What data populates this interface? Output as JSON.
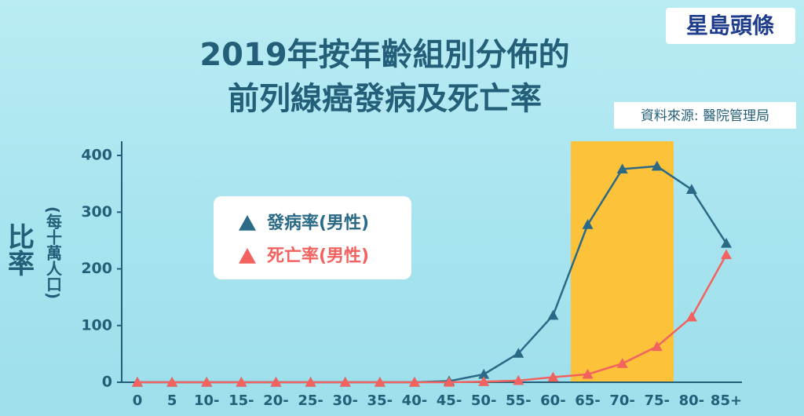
{
  "chart_data": {
    "type": "line",
    "title": [
      "2019年按年齡組別分佈的",
      "前列線癌發病及死亡率"
    ],
    "logo": "星島頭條",
    "source": "資料來源: 醫院管理局",
    "y_label": "比率",
    "y_unit": "(每十萬人口)",
    "categories": [
      "0",
      "5",
      "10-",
      "15-",
      "20-",
      "25-",
      "30-",
      "35-",
      "40-",
      "45-",
      "50-",
      "55-",
      "60-",
      "65-",
      "70-",
      "75-",
      "80-",
      "85+"
    ],
    "series": [
      {
        "name": "發病率(男性)",
        "color": "#2b6a86",
        "values": [
          0,
          0,
          0,
          0,
          0,
          0,
          0,
          0,
          0,
          2,
          14,
          51,
          118,
          278,
          376,
          381,
          340,
          245
        ]
      },
      {
        "name": "死亡率(男性)",
        "color": "#f2625f",
        "values": [
          0,
          0,
          0,
          0,
          0,
          0,
          0,
          0,
          0,
          0,
          1,
          3,
          9,
          14,
          33,
          63,
          115,
          225
        ]
      }
    ],
    "ylim": [
      0,
      425
    ],
    "yticks": [
      0,
      100,
      200,
      300,
      400
    ]
  }
}
